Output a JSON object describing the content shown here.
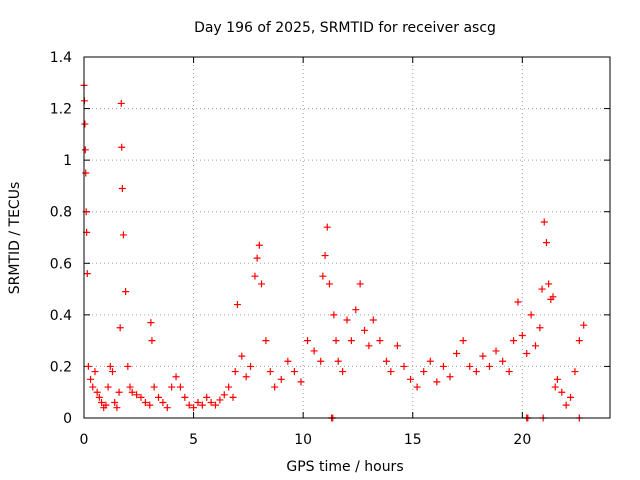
{
  "chart_data": {
    "type": "scatter",
    "title": "Day 196 of 2025, SRMTID for receiver ascg",
    "xlabel": "GPS time / hours",
    "ylabel": "SRMTID / TECUs",
    "xlim": [
      0,
      24
    ],
    "ylim": [
      0,
      1.4
    ],
    "xticks": [
      0,
      5,
      10,
      15,
      20
    ],
    "xtick_labels": [
      "0",
      "5",
      "10",
      "15",
      "20"
    ],
    "yticks": [
      0,
      0.2,
      0.4,
      0.6,
      0.8,
      1.0,
      1.2,
      1.4
    ],
    "ytick_labels": [
      "0",
      "0.2",
      "0.4",
      "0.6",
      "0.8",
      "1",
      "1.2",
      "1.4"
    ],
    "grid": true,
    "marker": "+",
    "series": [
      {
        "name": "SRMTID",
        "color": "#ff0000",
        "x": [
          0.0,
          0.02,
          0.04,
          0.06,
          0.08,
          0.1,
          0.12,
          0.15,
          0.2,
          0.3,
          0.4,
          0.5,
          0.6,
          0.7,
          0.8,
          0.9,
          1.0,
          1.1,
          1.2,
          1.3,
          1.4,
          1.5,
          1.6,
          1.65,
          1.7,
          1.72,
          1.75,
          1.8,
          1.9,
          2.0,
          2.1,
          2.2,
          2.4,
          2.6,
          2.8,
          3.0,
          3.05,
          3.1,
          3.2,
          3.4,
          3.6,
          3.8,
          4.0,
          4.2,
          4.4,
          4.6,
          4.8,
          5.0,
          5.2,
          5.4,
          5.6,
          5.8,
          6.0,
          6.2,
          6.4,
          6.6,
          6.8,
          6.9,
          7.0,
          7.2,
          7.4,
          7.6,
          7.8,
          7.9,
          8.0,
          8.1,
          8.3,
          8.5,
          8.7,
          9.0,
          9.3,
          9.6,
          9.9,
          10.2,
          10.5,
          10.8,
          10.9,
          11.0,
          11.1,
          11.2,
          11.4,
          11.5,
          11.6,
          11.8,
          12.0,
          12.2,
          12.4,
          12.6,
          12.8,
          13.0,
          13.2,
          13.5,
          13.8,
          14.0,
          14.3,
          14.6,
          14.9,
          15.2,
          15.5,
          15.8,
          16.1,
          16.4,
          16.7,
          17.0,
          17.3,
          17.6,
          17.9,
          18.2,
          18.5,
          18.8,
          19.1,
          19.4,
          19.6,
          19.8,
          20.0,
          20.2,
          20.4,
          20.6,
          20.8,
          20.9,
          21.0,
          21.1,
          21.2,
          21.3,
          21.4,
          21.5,
          21.6,
          21.8,
          22.0,
          22.2,
          22.4,
          22.6,
          22.8,
          11.3,
          11.35,
          20.2,
          20.25,
          20.95,
          22.6
        ],
        "y": [
          1.29,
          1.23,
          1.14,
          1.04,
          0.95,
          0.8,
          0.72,
          0.56,
          0.2,
          0.15,
          0.12,
          0.18,
          0.1,
          0.08,
          0.06,
          0.04,
          0.05,
          0.12,
          0.2,
          0.18,
          0.06,
          0.04,
          0.1,
          0.35,
          1.22,
          1.05,
          0.89,
          0.71,
          0.49,
          0.2,
          0.12,
          0.1,
          0.09,
          0.08,
          0.06,
          0.05,
          0.37,
          0.3,
          0.12,
          0.08,
          0.06,
          0.04,
          0.12,
          0.16,
          0.12,
          0.08,
          0.05,
          0.04,
          0.06,
          0.05,
          0.08,
          0.06,
          0.05,
          0.07,
          0.09,
          0.12,
          0.08,
          0.18,
          0.44,
          0.24,
          0.16,
          0.2,
          0.55,
          0.62,
          0.67,
          0.52,
          0.3,
          0.18,
          0.12,
          0.15,
          0.22,
          0.18,
          0.14,
          0.3,
          0.26,
          0.22,
          0.55,
          0.63,
          0.74,
          0.52,
          0.4,
          0.3,
          0.22,
          0.18,
          0.38,
          0.3,
          0.42,
          0.52,
          0.34,
          0.28,
          0.38,
          0.3,
          0.22,
          0.18,
          0.28,
          0.2,
          0.15,
          0.12,
          0.18,
          0.22,
          0.14,
          0.2,
          0.16,
          0.25,
          0.3,
          0.2,
          0.18,
          0.24,
          0.2,
          0.26,
          0.22,
          0.18,
          0.3,
          0.45,
          0.32,
          0.25,
          0.4,
          0.28,
          0.35,
          0.5,
          0.76,
          0.68,
          0.52,
          0.46,
          0.47,
          0.12,
          0.15,
          0.1,
          0.05,
          0.08,
          0.18,
          0.3,
          0.36,
          0.0,
          0.0,
          0.0,
          0.0,
          0.0,
          0.0
        ]
      }
    ]
  }
}
